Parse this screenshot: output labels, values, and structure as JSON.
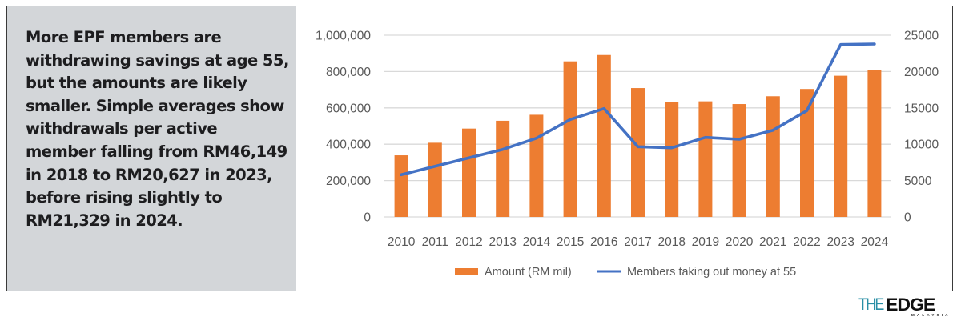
{
  "panel": {
    "headline": "More EPF members are withdrawing savings at age 55, but the amounts are likely smaller. Simple averages show withdrawals per active member falling from RM46,149 in 2018 to RM20,627 in 2023, before rising slightly to RM21,329 in 2024."
  },
  "branding": {
    "logo_the": "THE",
    "logo_edge": "EDGE",
    "logo_sub": "MALAYSIA",
    "logo_the_color": "#2a8fa6"
  },
  "chart_data": {
    "type": "bar",
    "title": "",
    "xlabel": "",
    "ylabel": "",
    "categories": [
      "2010",
      "2011",
      "2012",
      "2013",
      "2014",
      "2015",
      "2016",
      "2017",
      "2018",
      "2019",
      "2020",
      "2021",
      "2022",
      "2023",
      "2024"
    ],
    "grid": true,
    "legend_position": "bottom",
    "y_left": {
      "range": [
        0,
        1000000
      ],
      "ticks": [
        0,
        200000,
        400000,
        600000,
        800000,
        1000000
      ],
      "tick_labels": [
        "0",
        "200,000",
        "400,000",
        "600,000",
        "800,000",
        "1,000,000"
      ]
    },
    "y_right": {
      "range": [
        0,
        25000
      ],
      "ticks": [
        0,
        5000,
        10000,
        15000,
        20000,
        25000
      ],
      "tick_labels": [
        "0",
        "5000",
        "10000",
        "15000",
        "20000",
        "25000"
      ]
    },
    "series": [
      {
        "name": "Amount (RM mil)",
        "type": "bar",
        "axis": "left",
        "color": "#ed7d31",
        "values": [
          339000,
          408000,
          486000,
          529000,
          562000,
          856000,
          891000,
          709000,
          631000,
          636000,
          621000,
          664000,
          704000,
          777000,
          809000
        ]
      },
      {
        "name": "Members taking out money at 55",
        "type": "line",
        "axis": "right",
        "color": "#4472c4",
        "values": [
          5800,
          6970,
          8120,
          9280,
          10830,
          13400,
          14900,
          9660,
          9500,
          10940,
          10680,
          11930,
          14610,
          23710,
          23790
        ]
      }
    ]
  }
}
